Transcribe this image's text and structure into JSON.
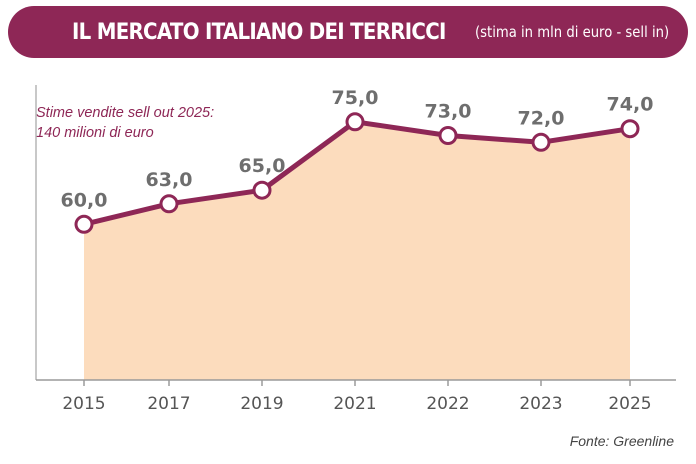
{
  "header": {
    "title": "IL MERCATO ITALIANO DEI TERRICCI",
    "subtitle": "(stima in mln di euro - sell in)"
  },
  "note": {
    "line1": "Stime vendite sell out 2025:",
    "line2": "140 milioni di euro"
  },
  "source": "Fonte: Greenline",
  "colors": {
    "banner": "#8e2756",
    "line": "#8e2756",
    "area_fill": "#fcdcbd",
    "labels": "#6e6e6e"
  },
  "chart_data": {
    "type": "area",
    "title": "IL MERCATO ITALIANO DEI TERRICCI",
    "subtitle": "(stima in mln di euro - sell in)",
    "categories": [
      "2015",
      "2017",
      "2019",
      "2021",
      "2022",
      "2023",
      "2025"
    ],
    "series": [
      {
        "values": [
          60.0,
          63.0,
          65.0,
          75.0,
          73.0,
          72.0,
          74.0
        ],
        "labels": [
          "60,0",
          "63,0",
          "65,0",
          "75,0",
          "73,0",
          "72,0",
          "74,0"
        ]
      }
    ],
    "ylim": [
      58,
      77
    ],
    "grid": false,
    "legend": "none"
  }
}
